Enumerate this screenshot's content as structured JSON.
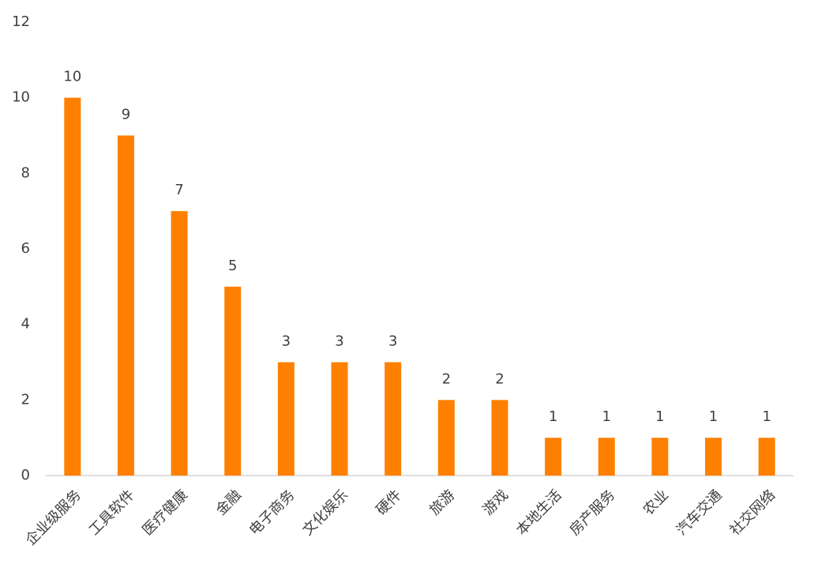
{
  "chart_data": {
    "type": "bar",
    "categories": [
      "企业级服务",
      "工具软件",
      "医疗健康",
      "金融",
      "电子商务",
      "文化娱乐",
      "硬件",
      "旅游",
      "游戏",
      "本地生活",
      "房产服务",
      "农业",
      "汽车交通",
      "社交网络"
    ],
    "values": [
      10,
      9,
      7,
      5,
      3,
      3,
      3,
      2,
      2,
      1,
      1,
      1,
      1,
      1
    ],
    "color": "#ff8000",
    "ylim": [
      0,
      12
    ],
    "yticks": [
      0,
      2,
      4,
      6,
      8,
      10,
      12
    ],
    "grid": false
  }
}
